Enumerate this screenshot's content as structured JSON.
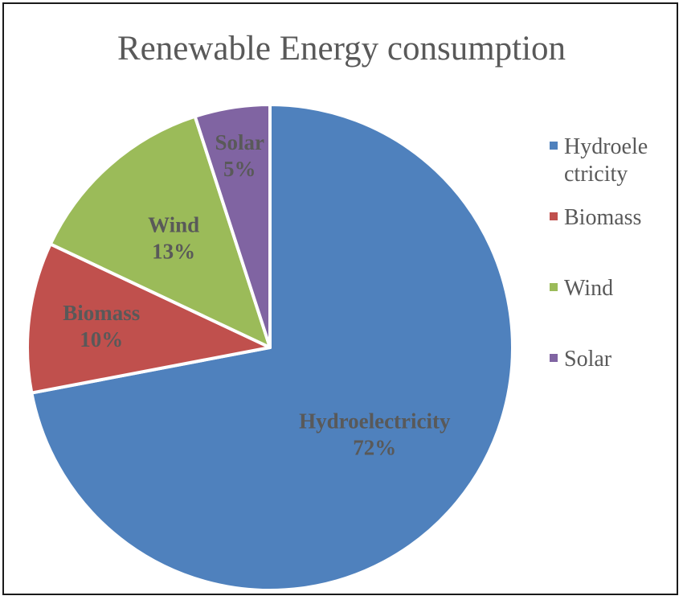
{
  "chart_data": {
    "type": "pie",
    "title": "Renewable Energy consumption",
    "slices": [
      {
        "name": "Hydroelectricity",
        "value": 72,
        "label_lines": [
          "Hydroelectricity",
          "72%"
        ],
        "color": "#4f81bd"
      },
      {
        "name": "Biomass",
        "value": 10,
        "label_lines": [
          "Biomass",
          "10%"
        ],
        "color": "#c0504d"
      },
      {
        "name": "Wind",
        "value": 13,
        "label_lines": [
          "Wind",
          "13%"
        ],
        "color": "#9bbb59"
      },
      {
        "name": "Solar",
        "value": 5,
        "label_lines": [
          "Solar",
          "5%"
        ],
        "color": "#8064a2"
      }
    ],
    "legend": {
      "placement": "right",
      "entries": [
        {
          "lines": [
            "Hydroele",
            "ctricity"
          ],
          "color": "#4f81bd"
        },
        {
          "lines": [
            "Biomass"
          ],
          "color": "#c0504d"
        },
        {
          "lines": [
            "Wind"
          ],
          "color": "#9bbb59"
        },
        {
          "lines": [
            "Solar"
          ],
          "color": "#8064a2"
        }
      ]
    }
  }
}
